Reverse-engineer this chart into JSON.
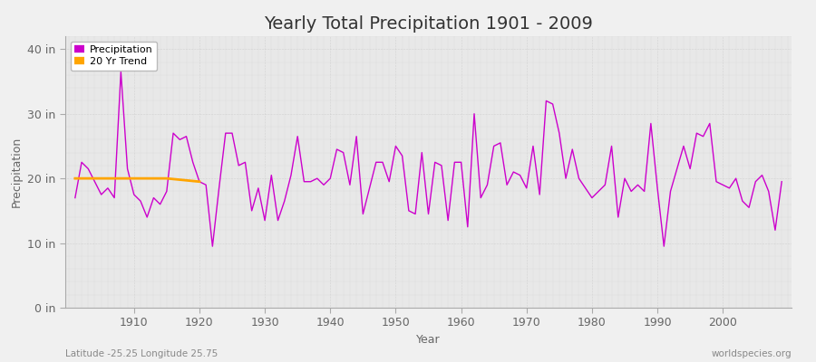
{
  "title": "Yearly Total Precipitation 1901 - 2009",
  "xlabel": "Year",
  "ylabel": "Precipitation",
  "footnote_left": "Latitude -25.25 Longitude 25.75",
  "footnote_right": "worldspecies.org",
  "fig_bg_color": "#f0f0f0",
  "plot_bg_color": "#e8e8e8",
  "line_color": "#cc00cc",
  "trend_color": "#ffa500",
  "ylim": [
    0,
    42
  ],
  "yticks": [
    0,
    10,
    20,
    30,
    40
  ],
  "ytick_labels": [
    "0 in",
    "10 in",
    "20 in",
    "30 in",
    "40 in"
  ],
  "xlim": [
    1899.5,
    2010.5
  ],
  "xticks": [
    1910,
    1920,
    1930,
    1940,
    1950,
    1960,
    1970,
    1980,
    1990,
    2000
  ],
  "years": [
    1901,
    1902,
    1903,
    1904,
    1905,
    1906,
    1907,
    1908,
    1909,
    1910,
    1911,
    1912,
    1913,
    1914,
    1915,
    1916,
    1917,
    1918,
    1919,
    1920,
    1921,
    1922,
    1923,
    1924,
    1925,
    1926,
    1927,
    1928,
    1929,
    1930,
    1931,
    1932,
    1933,
    1934,
    1935,
    1936,
    1937,
    1938,
    1939,
    1940,
    1941,
    1942,
    1943,
    1944,
    1945,
    1946,
    1947,
    1948,
    1949,
    1950,
    1951,
    1952,
    1953,
    1954,
    1955,
    1956,
    1957,
    1958,
    1959,
    1960,
    1961,
    1962,
    1963,
    1964,
    1965,
    1966,
    1967,
    1968,
    1969,
    1970,
    1971,
    1972,
    1973,
    1974,
    1975,
    1976,
    1977,
    1978,
    1979,
    1980,
    1981,
    1982,
    1983,
    1984,
    1985,
    1986,
    1987,
    1988,
    1989,
    1990,
    1991,
    1992,
    1993,
    1994,
    1995,
    1996,
    1997,
    1998,
    1999,
    2000,
    2001,
    2002,
    2003,
    2004,
    2005,
    2006,
    2007,
    2008,
    2009
  ],
  "precip": [
    17.0,
    22.5,
    21.5,
    19.5,
    17.5,
    18.5,
    17.0,
    36.5,
    21.5,
    17.5,
    16.5,
    14.0,
    17.0,
    16.0,
    18.0,
    27.0,
    26.0,
    26.5,
    22.5,
    19.5,
    19.0,
    9.5,
    18.5,
    27.0,
    27.0,
    22.0,
    22.5,
    15.0,
    18.5,
    13.5,
    20.5,
    13.5,
    16.5,
    20.5,
    26.5,
    19.5,
    19.5,
    20.0,
    19.0,
    20.0,
    24.5,
    24.0,
    19.0,
    26.5,
    14.5,
    18.5,
    22.5,
    22.5,
    19.5,
    25.0,
    23.5,
    15.0,
    14.5,
    24.0,
    14.5,
    22.5,
    22.0,
    13.5,
    22.5,
    22.5,
    12.5,
    30.0,
    17.0,
    19.0,
    25.0,
    25.5,
    19.0,
    21.0,
    20.5,
    18.5,
    25.0,
    17.5,
    32.0,
    31.5,
    27.0,
    20.0,
    24.5,
    20.0,
    18.5,
    17.0,
    18.0,
    19.0,
    25.0,
    14.0,
    20.0,
    18.0,
    19.0,
    18.0,
    28.5,
    18.5,
    9.5,
    18.0,
    21.5,
    25.0,
    21.5,
    27.0,
    26.5,
    28.5,
    19.5,
    19.0,
    18.5,
    20.0,
    16.5,
    15.5,
    19.5,
    20.5,
    18.0,
    12.0,
    19.5
  ],
  "trend_years": [
    1901,
    1905,
    1910,
    1915,
    1920
  ],
  "trend_values": [
    20.0,
    20.0,
    20.0,
    20.0,
    19.5
  ],
  "legend_labels": [
    "Precipitation",
    "20 Yr Trend"
  ],
  "legend_colors": [
    "#cc00cc",
    "#ffa500"
  ],
  "title_fontsize": 14,
  "axis_label_fontsize": 9,
  "tick_fontsize": 9,
  "footnote_fontsize": 7.5
}
